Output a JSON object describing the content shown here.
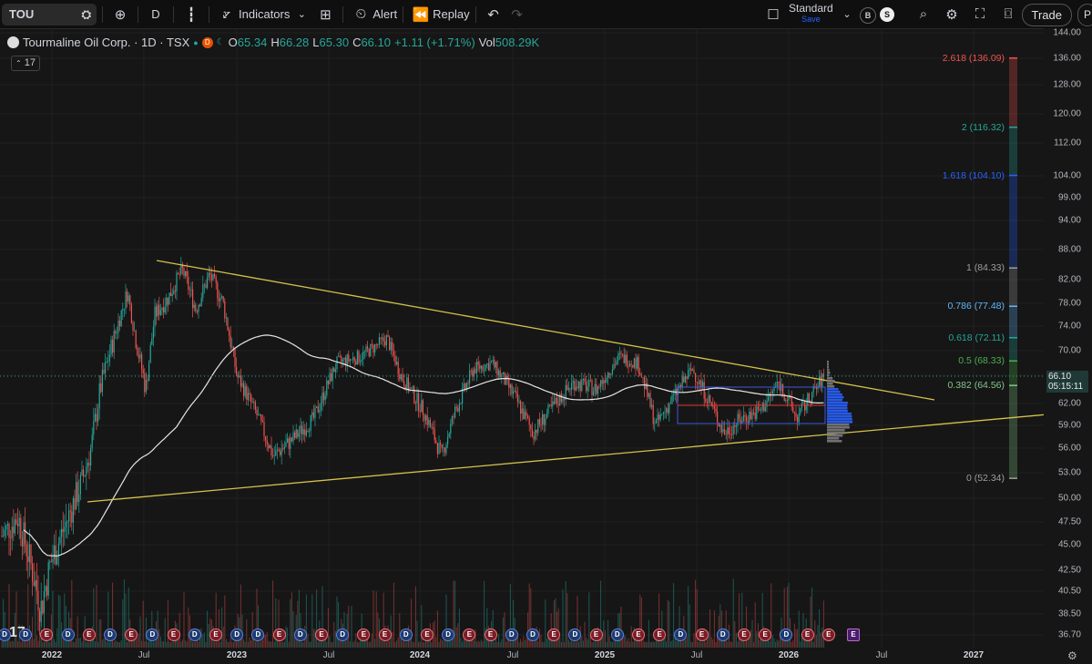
{
  "toolbar": {
    "symbol": "TOU",
    "interval": "D",
    "indicators_label": "Indicators",
    "alert_label": "Alert",
    "replay_label": "Replay",
    "layout_name": "Standard",
    "layout_save": "Save",
    "trade_label": "Trade",
    "profile_initial": "P",
    "b_badge": "B",
    "s_badge": "S"
  },
  "legend": {
    "title": "Tourmaline Oil Corp. · 1D · TSX",
    "open_label": "O",
    "open": "65.34",
    "high_label": "H",
    "high": "66.28",
    "low_label": "L",
    "low": "65.30",
    "close_label": "C",
    "close": "66.10",
    "change": "+1.11 (+1.71%)",
    "vol_label": "Vol",
    "vol": "508.29K",
    "collapse_count": "17"
  },
  "current_price": {
    "price": "66.10",
    "countdown": "05:15:11"
  },
  "colors": {
    "up": "#26a69a",
    "down": "#ef5350",
    "trendline": "#d4c24a",
    "ma": "#e6e6e6",
    "background": "#161616"
  },
  "price_ticks": [
    "144.00",
    "136.00",
    "128.00",
    "120.00",
    "112.00",
    "104.00",
    "99.00",
    "94.00",
    "88.00",
    "82.00",
    "78.00",
    "74.00",
    "70.00",
    "66.00",
    "62.00",
    "59.00",
    "56.00",
    "53.00",
    "50.00",
    "47.50",
    "45.00",
    "42.50",
    "40.50",
    "38.50",
    "36.70"
  ],
  "time_ticks": [
    {
      "label": "2022",
      "year": true
    },
    {
      "label": "Jul",
      "year": false
    },
    {
      "label": "2023",
      "year": true
    },
    {
      "label": "Jul",
      "year": false
    },
    {
      "label": "2024",
      "year": true
    },
    {
      "label": "Jul",
      "year": false
    },
    {
      "label": "2025",
      "year": true
    },
    {
      "label": "Jul",
      "year": false
    },
    {
      "label": "2026",
      "year": true
    },
    {
      "label": "Jul",
      "year": false
    },
    {
      "label": "2027",
      "year": true
    }
  ],
  "fib_levels": [
    {
      "ratio": "2.618",
      "price": 136.09,
      "color": "#ef5350"
    },
    {
      "ratio": "2",
      "price": 116.32,
      "color": "#26a69a"
    },
    {
      "ratio": "1.618",
      "price": 104.1,
      "color": "#2962ff"
    },
    {
      "ratio": "1",
      "price": 84.33,
      "color": "#9e9e9e"
    },
    {
      "ratio": "0.786",
      "price": 77.48,
      "color": "#64b5f6"
    },
    {
      "ratio": "0.618",
      "price": 72.11,
      "color": "#26a69a"
    },
    {
      "ratio": "0.5",
      "price": 68.33,
      "color": "#4caf50"
    },
    {
      "ratio": "0.382",
      "price": 64.56,
      "color": "#81c784"
    },
    {
      "ratio": "0",
      "price": 52.34,
      "color": "#9e9e9e"
    }
  ],
  "events": [
    "D",
    "D",
    "E",
    "D",
    "E",
    "D",
    "E",
    "D",
    "E",
    "D",
    "E",
    "D",
    "D",
    "E",
    "D",
    "E",
    "D",
    "E",
    "E",
    "D",
    "E",
    "D",
    "E",
    "E",
    "D",
    "D",
    "E",
    "D",
    "E",
    "D",
    "E",
    "E",
    "D",
    "E",
    "D",
    "E",
    "E",
    "D",
    "E",
    "E"
  ]
}
